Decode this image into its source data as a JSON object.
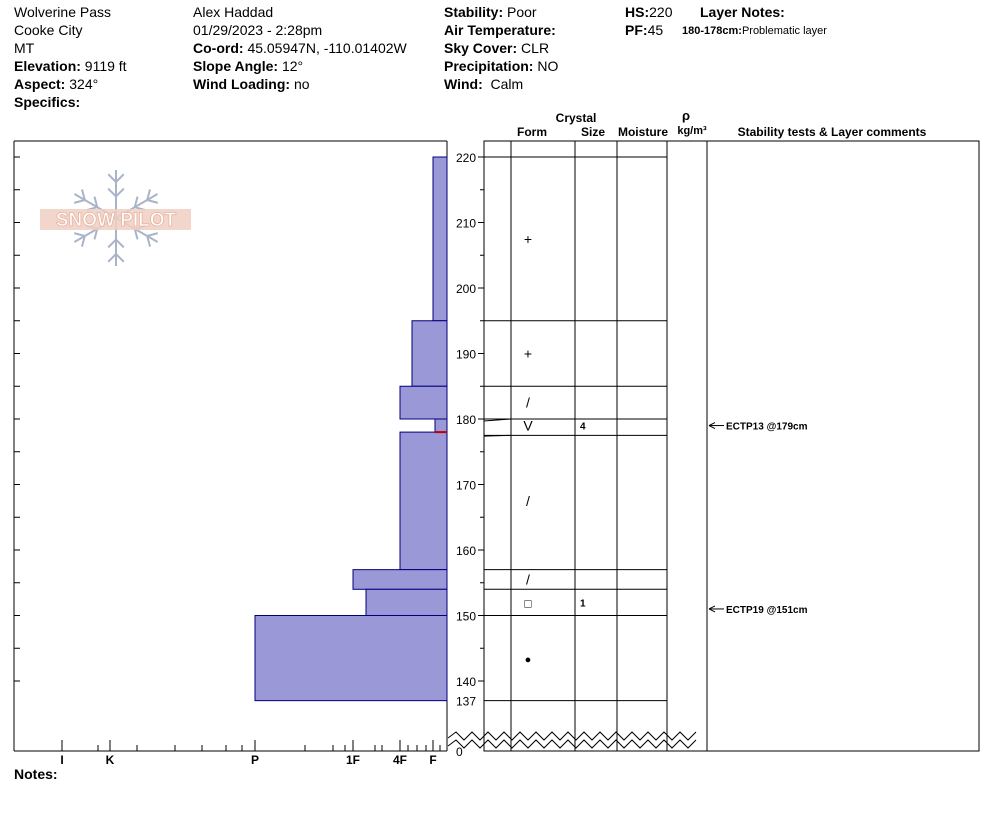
{
  "header": {
    "location": "Wolverine Pass",
    "area": "Cooke City",
    "state": "MT",
    "elevation_label": "Elevation:",
    "elevation": "9119 ft",
    "aspect_label": "Aspect:",
    "aspect": "324°",
    "specifics_label": "Specifics:",
    "observer": "Alex Haddad",
    "datetime": "01/29/2023 - 2:28pm",
    "coord_label": "Co-ord:",
    "coord": "45.05947N, -110.01402W",
    "slope_label": "Slope Angle:",
    "slope": "12°",
    "wind_loading_label": "Wind Loading:",
    "wind_loading": "no",
    "stability_label": "Stability:",
    "stability": "Poor",
    "air_temp_label": "Air Temperature:",
    "sky_label": "Sky Cover:",
    "sky": "CLR",
    "precip_label": "Precipitation:",
    "precip": "NO",
    "wind_label": "Wind:",
    "wind": "Calm",
    "hs_label": "HS:",
    "hs": "220",
    "pf_label": "PF:",
    "pf": "45",
    "layer_notes_label": "Layer Notes:",
    "layer_note_range": "180-178cm:",
    "layer_note_text": "Problematic layer",
    "notes_label": "Notes:"
  },
  "logo": {
    "text": "SNOW PILOT"
  },
  "columns": {
    "crystal": "Crystal",
    "form": "Form",
    "size": "Size",
    "moisture": "Moisture",
    "rho": "ρ",
    "density_unit": "kg/m³",
    "stability_comments": "Stability tests & Layer comments"
  },
  "chart_data": {
    "type": "bar",
    "description_axis": "height (cm)",
    "y_ticks": [
      220,
      210,
      200,
      190,
      180,
      170,
      160,
      150,
      140
    ],
    "y_extra_labels": [
      "137",
      "0"
    ],
    "ylim": [
      137,
      220
    ],
    "hardness_ticks": [
      "I",
      "K",
      "P",
      "1F",
      "4F",
      "F"
    ],
    "hardness_profile": [
      {
        "top": 220,
        "bottom": 195,
        "hardness": "F"
      },
      {
        "top": 195,
        "bottom": 185,
        "hardness": "F+"
      },
      {
        "top": 185,
        "bottom": 180,
        "hardness": "4F"
      },
      {
        "top": 180,
        "bottom": 178,
        "hardness": "F-"
      },
      {
        "top": 178,
        "bottom": 157,
        "hardness": "4F"
      },
      {
        "top": 157,
        "bottom": 154,
        "hardness": "1F"
      },
      {
        "top": 154,
        "bottom": 150,
        "hardness": "4F+"
      },
      {
        "top": 150,
        "bottom": 137,
        "hardness": "P"
      }
    ],
    "layers": [
      {
        "top": 220,
        "bottom": 195,
        "form": "+",
        "size": ""
      },
      {
        "top": 195,
        "bottom": 185,
        "form": "+",
        "size": ""
      },
      {
        "top": 185,
        "bottom": 180,
        "form": "/",
        "size": ""
      },
      {
        "top": 180,
        "bottom": 178,
        "form": "V",
        "size": "4"
      },
      {
        "top": 178,
        "bottom": 157,
        "form": "/",
        "size": ""
      },
      {
        "top": 157,
        "bottom": 154,
        "form": "/",
        "size": ""
      },
      {
        "top": 154,
        "bottom": 150,
        "form": "□",
        "size": "1"
      },
      {
        "top": 150,
        "bottom": 137,
        "form": "●",
        "size": ""
      }
    ],
    "stability_tests": [
      {
        "height": 179,
        "label": "ECTP13 @179cm"
      },
      {
        "height": 151,
        "label": "ECTP19 @151cm"
      }
    ],
    "colors": {
      "fill": "#9b98d8",
      "stroke": "#00007a",
      "marker": "#c00000"
    }
  }
}
